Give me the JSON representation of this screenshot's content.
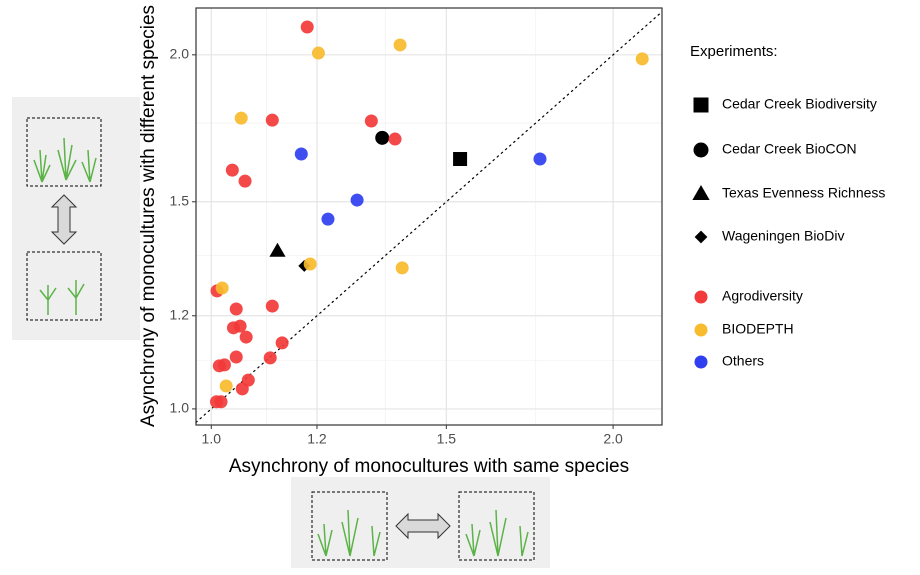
{
  "chart_data": {
    "type": "scatter",
    "x_label": "Asynchrony of monocultures with same species",
    "y_label": "Asynchrony of monocultures with different species",
    "xscale": "log",
    "yscale": "log",
    "xlim": [
      0.974,
      2.176
    ],
    "ylim": [
      0.969,
      2.192
    ],
    "xticks": [
      {
        "value": 1,
        "label": "1.0"
      },
      1.2,
      1.5,
      {
        "value": 2,
        "label": "2.0"
      }
    ],
    "yticks": [
      {
        "value": 1,
        "label": "1.0"
      },
      1.2,
      1.5,
      {
        "value": 2,
        "label": "2.0"
      }
    ],
    "xminor": [
      1.1,
      1.35,
      1.75
    ],
    "yminor": [
      1.1,
      1.35,
      1.75
    ],
    "grid": true,
    "legend_title": "Experiments:",
    "series": [
      {
        "name": "Cedar Creek Biodiversity",
        "color": "#000000",
        "marker": "square",
        "x": [
          1.536
        ],
        "values": [
          1.631
        ]
      },
      {
        "name": "Cedar Creek BioCON",
        "color": "#000000",
        "marker": "circle",
        "x": [
          1.343
        ],
        "values": [
          1.7
        ]
      },
      {
        "name": "Texas Evenness Richness",
        "color": "#000000",
        "marker": "triangle",
        "x": [
          1.121
        ],
        "values": [
          1.362
        ]
      },
      {
        "name": "Wageningen BioDiv",
        "color": "#000000",
        "marker": "diamond",
        "x": [
          1.174
        ],
        "values": [
          1.323
        ]
      },
      {
        "name": "Agrodiversity",
        "color": "#f23a3a",
        "marker": "circle",
        "x": [
          1.18,
          1.111,
          1.037,
          1.06,
          1.318,
          1.373,
          1.01,
          1.044,
          1.111,
          1.051,
          1.039,
          1.062,
          1.13,
          1.044,
          1.107,
          1.014,
          1.023,
          1.066,
          1.055,
          1.009,
          1.017
        ],
        "values": [
          2.112,
          1.76,
          1.596,
          1.562,
          1.757,
          1.696,
          1.26,
          1.216,
          1.223,
          1.176,
          1.172,
          1.151,
          1.138,
          1.107,
          1.105,
          1.088,
          1.09,
          1.058,
          1.04,
          1.014,
          1.014
        ]
      },
      {
        "name": "BIODEPTH",
        "color": "#f9bb2e",
        "marker": "circle",
        "x": [
          1.203,
          1.385,
          2.103,
          1.053,
          1.186,
          1.39,
          1.019,
          1.026
        ],
        "values": [
          2.007,
          2.039,
          1.984,
          1.767,
          1.328,
          1.318,
          1.267,
          1.046
        ]
      },
      {
        "name": "Others",
        "color": "#2f3ff0",
        "marker": "circle",
        "x": [
          1.168,
          1.763,
          1.286,
          1.223
        ],
        "values": [
          1.647,
          1.631,
          1.505,
          1.45
        ]
      }
    ]
  }
}
